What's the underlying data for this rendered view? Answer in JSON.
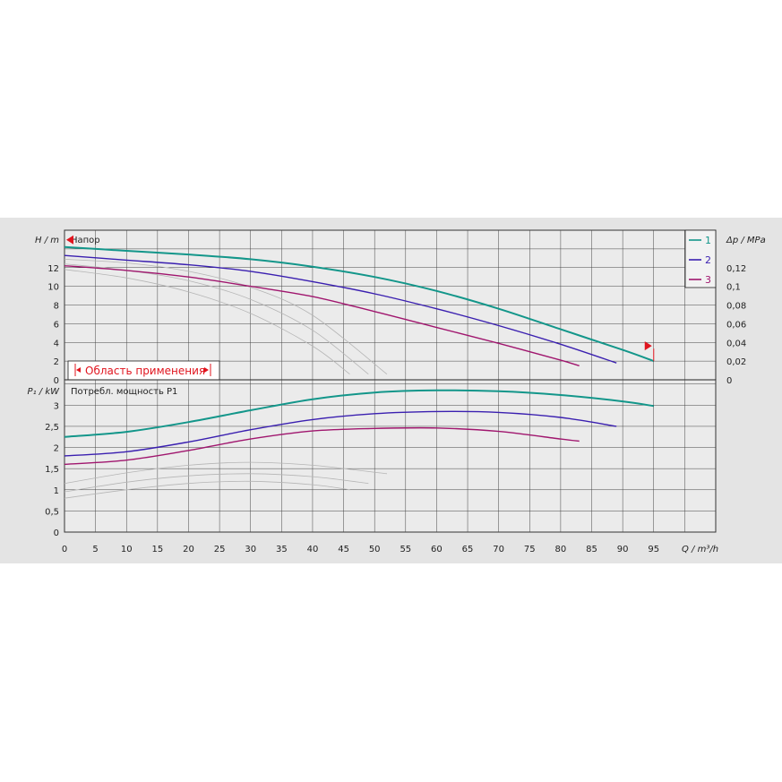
{
  "chart_data": [
    {
      "type": "line",
      "title": "Напор",
      "ylabel": "H / m",
      "y2label": "Δp / MPa",
      "xlabel": "Q / m³/h",
      "xlim": [
        0,
        105
      ],
      "ylim": [
        0,
        16
      ],
      "y2lim": [
        0,
        0.16
      ],
      "x_ticks": [
        0,
        5,
        10,
        15,
        20,
        25,
        30,
        35,
        40,
        45,
        50,
        55,
        60,
        65,
        70,
        75,
        80,
        85,
        90,
        95
      ],
      "y_ticks": [
        0,
        2,
        4,
        6,
        8,
        10,
        12
      ],
      "y2_ticks": [
        "0",
        "0,02",
        "0,04",
        "0,06",
        "0,08",
        "0,1",
        "0,12"
      ],
      "grid": true,
      "legend": "top-right",
      "operating_range_label": "Область применения",
      "series": [
        {
          "name": "1",
          "color": "#13968a",
          "x": [
            0,
            10,
            20,
            30,
            40,
            50,
            60,
            70,
            80,
            90,
            95
          ],
          "y": [
            14.2,
            13.8,
            13.4,
            12.9,
            12.1,
            11.0,
            9.5,
            7.6,
            5.4,
            3.2,
            2.0
          ]
        },
        {
          "name": "2",
          "color": "#3a1fb0",
          "x": [
            0,
            10,
            20,
            30,
            40,
            50,
            60,
            70,
            80,
            89
          ],
          "y": [
            13.3,
            12.8,
            12.3,
            11.6,
            10.5,
            9.2,
            7.6,
            5.8,
            3.8,
            1.8
          ]
        },
        {
          "name": "3",
          "color": "#a0166e",
          "x": [
            0,
            10,
            20,
            30,
            40,
            50,
            60,
            70,
            80,
            83
          ],
          "y": [
            12.2,
            11.7,
            11.0,
            10.0,
            8.9,
            7.3,
            5.6,
            3.9,
            2.1,
            1.5
          ]
        },
        {
          "color": "#b5b5b5",
          "x": [
            0,
            10,
            20,
            30,
            40,
            46
          ],
          "y": [
            11.8,
            10.9,
            9.4,
            7.1,
            3.6,
            0.6
          ]
        },
        {
          "color": "#b5b5b5",
          "x": [
            0,
            10,
            20,
            30,
            40,
            49
          ],
          "y": [
            12.4,
            11.7,
            10.6,
            8.6,
            5.3,
            0.6
          ]
        },
        {
          "color": "#b5b5b5",
          "x": [
            0,
            10,
            20,
            30,
            40,
            52
          ],
          "y": [
            12.9,
            12.5,
            11.6,
            9.9,
            6.9,
            0.6
          ]
        }
      ]
    },
    {
      "type": "line",
      "title": "Потребл. мощность P1",
      "ylabel": "P₁ / kW",
      "xlabel": "Q / m³/h",
      "xlim": [
        0,
        105
      ],
      "ylim": [
        0,
        3.6
      ],
      "y_ticks": [
        "0",
        "0,5",
        "1",
        "1,5",
        "2",
        "2,5",
        "3"
      ],
      "y_tick_values": [
        0,
        0.5,
        1,
        1.5,
        2,
        2.5,
        3
      ],
      "grid": true,
      "series": [
        {
          "name": "1",
          "color": "#13968a",
          "x": [
            0,
            10,
            20,
            30,
            40,
            50,
            60,
            70,
            80,
            90,
            95
          ],
          "y": [
            2.25,
            2.37,
            2.6,
            2.88,
            3.14,
            3.3,
            3.35,
            3.33,
            3.24,
            3.09,
            2.98
          ]
        },
        {
          "name": "2",
          "color": "#3a1fb0",
          "x": [
            0,
            10,
            20,
            30,
            40,
            50,
            60,
            70,
            80,
            89
          ],
          "y": [
            1.8,
            1.9,
            2.13,
            2.42,
            2.66,
            2.8,
            2.85,
            2.83,
            2.71,
            2.5
          ]
        },
        {
          "name": "3",
          "color": "#a0166e",
          "x": [
            0,
            10,
            20,
            30,
            40,
            50,
            60,
            70,
            80,
            83
          ],
          "y": [
            1.6,
            1.7,
            1.93,
            2.2,
            2.39,
            2.45,
            2.46,
            2.38,
            2.2,
            2.15
          ]
        },
        {
          "color": "#b5b5b5",
          "x": [
            0,
            10,
            20,
            30,
            40,
            46
          ],
          "y": [
            0.8,
            1.0,
            1.15,
            1.2,
            1.12,
            1.0
          ]
        },
        {
          "color": "#b5b5b5",
          "x": [
            0,
            10,
            20,
            30,
            40,
            49
          ],
          "y": [
            0.95,
            1.18,
            1.33,
            1.38,
            1.31,
            1.15
          ]
        },
        {
          "color": "#b5b5b5",
          "x": [
            0,
            10,
            20,
            30,
            40,
            52
          ],
          "y": [
            1.15,
            1.4,
            1.58,
            1.65,
            1.58,
            1.38
          ]
        }
      ]
    }
  ]
}
